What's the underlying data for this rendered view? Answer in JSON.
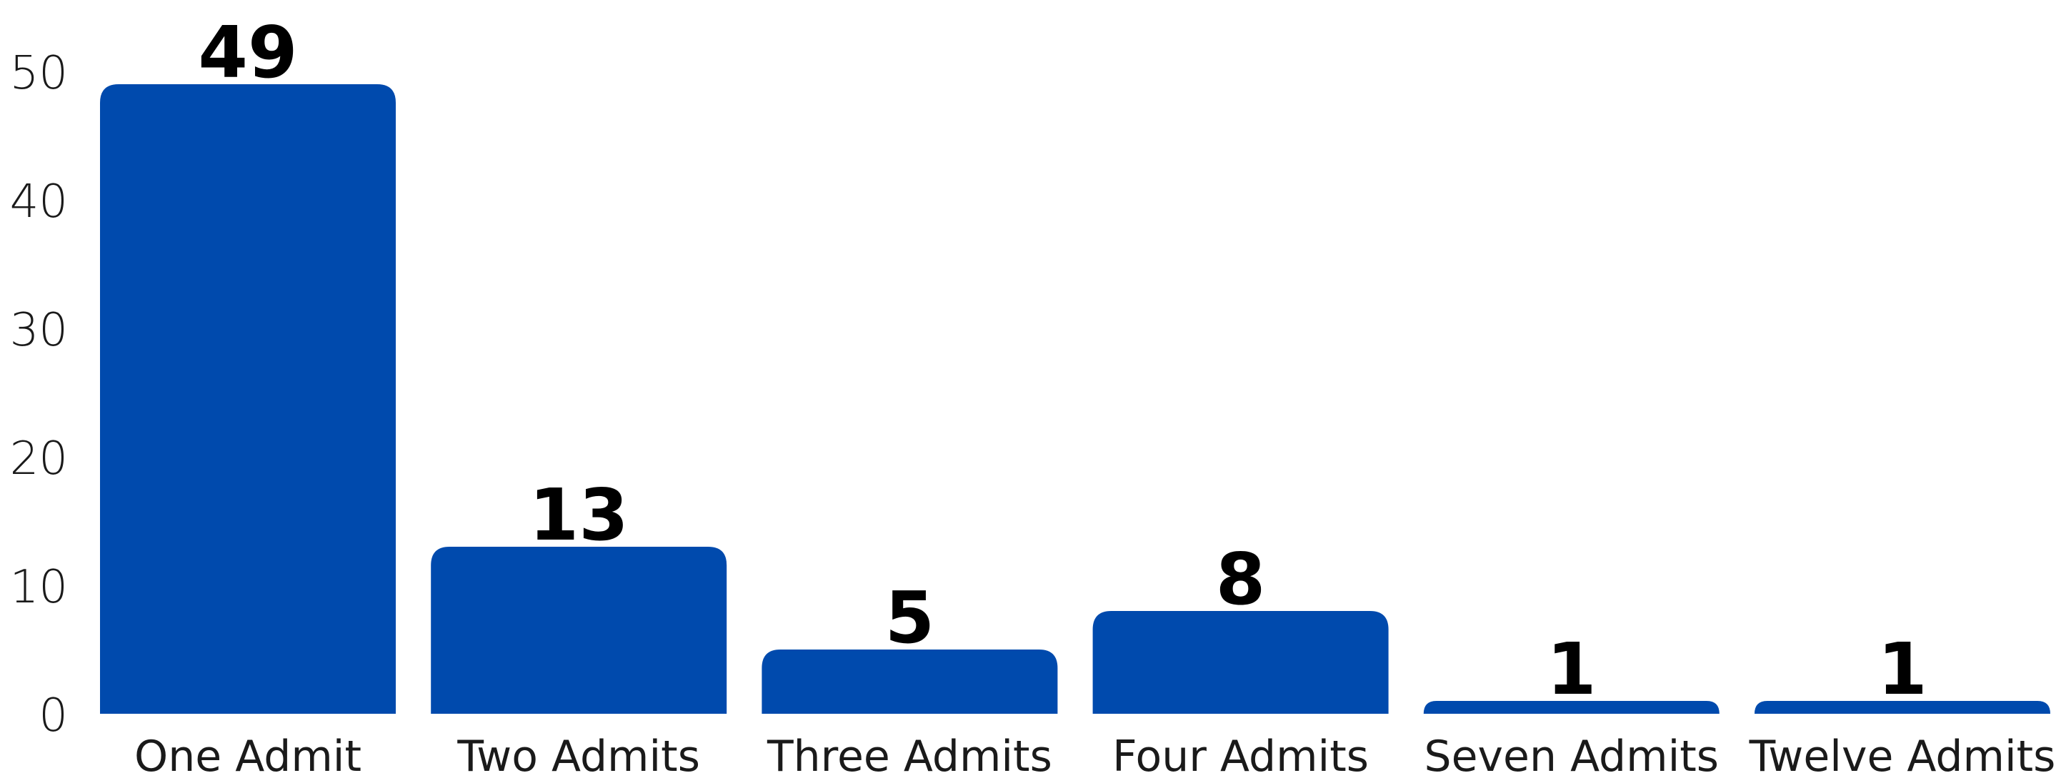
{
  "chart_data": {
    "type": "bar",
    "title": "",
    "xlabel": "",
    "ylabel": "",
    "categories": [
      "One Admit",
      "Two Admits",
      "Three Admits",
      "Four Admits",
      "Seven Admits",
      "Twelve Admits"
    ],
    "values": [
      49,
      13,
      5,
      8,
      1,
      1
    ],
    "data_labels": [
      "49",
      "13",
      "5",
      "8",
      "1",
      "1"
    ],
    "ylim": [
      0,
      50
    ],
    "yticks": [
      0,
      10,
      20,
      30,
      40,
      50
    ],
    "ytick_labels": [
      "0",
      "10",
      "20",
      "30",
      "40",
      "50"
    ],
    "grid": false,
    "legend": "none",
    "bar_color": "#004AAD"
  }
}
